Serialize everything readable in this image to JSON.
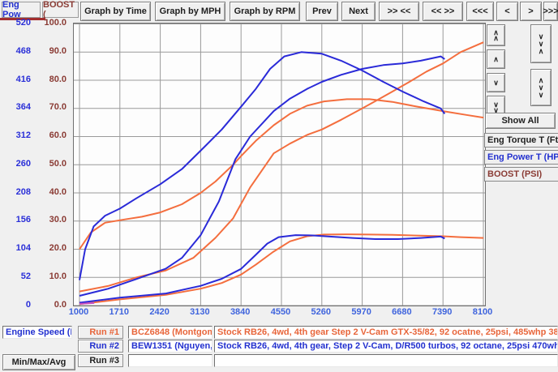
{
  "toolbar": {
    "axis_tabs": [
      {
        "label": "Eng Pow",
        "color": "#2230cf"
      },
      {
        "label": "BOOST (",
        "color": "#8a3b34"
      }
    ],
    "buttons": {
      "graph_by_time": "Graph by Time",
      "graph_by_mph": "Graph by MPH",
      "graph_by_rpm": "Graph by RPM",
      "prev": "Prev",
      "next": "Next",
      "zoom_in_x": ">> <<",
      "zoom_out_x": "<< >>",
      "pan_far_left": "<<<",
      "pan_left": "<",
      "pan_right": ">",
      "pan_far_right": ">>>"
    }
  },
  "right_panel": {
    "scroll_icons": {
      "up_fast": "∧\n∧",
      "up": "∧",
      "down": "∨",
      "down_fast": "∨\n∨",
      "collapse_scale": "∨\n∨\n∧",
      "expand_scale": "∧\n∨\n∨"
    },
    "show_all_label": "Show All",
    "legend": [
      {
        "label": "Eng Torque T (Ft",
        "color": "#202020"
      },
      {
        "label": "Eng Power T (HP",
        "color": "#2230cf"
      },
      {
        "label": "BOOST (PSI)",
        "color": "#8a3b34"
      }
    ]
  },
  "bottom": {
    "x_channel_label": "Engine Speed (R",
    "min_max_avg_label": "Min/Max/Avg",
    "runs": [
      {
        "label": "Run #1",
        "color": "#e8653a",
        "file": "BCZ6848 (Montgomer",
        "comment": "Stock RB26, 4wd, 4th gear Step 2 V-Cam GTX-35/82, 92 ocatne, 25psi, 485whp 380TQ"
      },
      {
        "label": "Run #2",
        "color": "#2230cf",
        "file": "BEW1351 (Nguyen, S",
        "comment": "Stock RB26, 4wd, 4th gear, Step 2 V-Cam, D/R500 turbos, 92 octane, 25psi 470whp, 440trq"
      },
      {
        "label": "Run #3",
        "color": "#202020",
        "file": "",
        "comment": ""
      }
    ]
  },
  "chart_data": {
    "type": "line",
    "grid": true,
    "x_axis": {
      "label": "Engine Speed (RPM)",
      "min": 1000,
      "max": 8100,
      "ticks": [
        1000,
        1710,
        2420,
        3130,
        3840,
        4550,
        5260,
        5970,
        6680,
        7390,
        8100
      ]
    },
    "y_axis_power": {
      "label": "Eng Power (HP) / Eng Torque (Ft-lb)",
      "min": 0,
      "max": 520,
      "color": "#2a2fd8",
      "ticks": [
        520,
        468,
        416,
        364,
        312,
        260,
        208,
        156,
        104,
        52,
        0
      ]
    },
    "y_axis_boost": {
      "label": "BOOST (PSI)",
      "min": 0.0,
      "max": 100.0,
      "color": "#8a3b34",
      "ticks": [
        "100.0",
        "90.0",
        "80.0",
        "70.0",
        "60.0",
        "50.0",
        "40.0",
        "30.0",
        "20.0",
        "10.0",
        "0.0"
      ]
    },
    "series": [
      {
        "name": "run1-torque",
        "unit": "ft-lb",
        "axis_max": 520,
        "color": "#f46e3e",
        "points": [
          [
            1000,
            104
          ],
          [
            1200,
            135
          ],
          [
            1450,
            153
          ],
          [
            1800,
            159
          ],
          [
            2100,
            164
          ],
          [
            2420,
            172
          ],
          [
            2800,
            187
          ],
          [
            3130,
            208
          ],
          [
            3390,
            229
          ],
          [
            3700,
            260
          ],
          [
            3840,
            276
          ],
          [
            4100,
            304
          ],
          [
            4415,
            333
          ],
          [
            4700,
            354
          ],
          [
            5000,
            369
          ],
          [
            5300,
            377
          ],
          [
            5700,
            381
          ],
          [
            6100,
            381
          ],
          [
            6500,
            376
          ],
          [
            6900,
            368
          ],
          [
            7390,
            359
          ],
          [
            7800,
            352
          ],
          [
            8100,
            347
          ]
        ]
      },
      {
        "name": "run1-power",
        "unit": "HP",
        "axis_max": 520,
        "color": "#f46e3e",
        "points": [
          [
            1000,
            26
          ],
          [
            1500,
            36
          ],
          [
            2000,
            52
          ],
          [
            2520,
            65
          ],
          [
            3000,
            88
          ],
          [
            3390,
            125
          ],
          [
            3700,
            161
          ],
          [
            4000,
            218
          ],
          [
            4415,
            281
          ],
          [
            4700,
            299
          ],
          [
            5000,
            315
          ],
          [
            5260,
            325
          ],
          [
            5600,
            343
          ],
          [
            5970,
            364
          ],
          [
            6244,
            380
          ],
          [
            6500,
            395
          ],
          [
            6800,
            413
          ],
          [
            7100,
            432
          ],
          [
            7390,
            447
          ],
          [
            7700,
            468
          ],
          [
            8100,
            486
          ]
        ]
      },
      {
        "name": "run1-boost",
        "unit": "PSI",
        "axis_max": 100,
        "color": "#f46e3e",
        "points": [
          [
            1000,
            0.5
          ],
          [
            1710,
            2.2
          ],
          [
            2520,
            3.8
          ],
          [
            3130,
            6
          ],
          [
            3500,
            8
          ],
          [
            3840,
            11
          ],
          [
            4100,
            14.5
          ],
          [
            4400,
            19
          ],
          [
            4700,
            22.8
          ],
          [
            5000,
            24.6
          ],
          [
            5300,
            25.2
          ],
          [
            5700,
            25.3
          ],
          [
            6100,
            25.2
          ],
          [
            6500,
            25.1
          ],
          [
            7000,
            24.8
          ],
          [
            7390,
            24.6
          ],
          [
            7700,
            24.3
          ],
          [
            8100,
            24
          ]
        ]
      },
      {
        "name": "run2-torque",
        "unit": "ft-lb",
        "axis_max": 520,
        "color": "#2a2ad8",
        "points": [
          [
            1000,
            47
          ],
          [
            1100,
            104
          ],
          [
            1250,
            146
          ],
          [
            1450,
            166
          ],
          [
            1710,
            179
          ],
          [
            2000,
            198
          ],
          [
            2420,
            224
          ],
          [
            2800,
            252
          ],
          [
            3130,
            286
          ],
          [
            3500,
            325
          ],
          [
            3840,
            367
          ],
          [
            4100,
            400
          ],
          [
            4350,
            437
          ],
          [
            4600,
            460
          ],
          [
            4900,
            468
          ],
          [
            5260,
            465
          ],
          [
            5600,
            452
          ],
          [
            5970,
            434
          ],
          [
            6340,
            413
          ],
          [
            6680,
            395
          ],
          [
            7050,
            377
          ],
          [
            7350,
            364
          ],
          [
            7420,
            354
          ]
        ]
      },
      {
        "name": "run2-power",
        "unit": "HP",
        "axis_max": 520,
        "color": "#2a2ad8",
        "points": [
          [
            1000,
            18
          ],
          [
            1500,
            31
          ],
          [
            2000,
            49
          ],
          [
            2515,
            68
          ],
          [
            2800,
            88
          ],
          [
            3130,
            130
          ],
          [
            3450,
            192
          ],
          [
            3740,
            270
          ],
          [
            4000,
            312
          ],
          [
            4415,
            359
          ],
          [
            4700,
            382
          ],
          [
            5000,
            400
          ],
          [
            5260,
            413
          ],
          [
            5600,
            426
          ],
          [
            5970,
            437
          ],
          [
            6340,
            444
          ],
          [
            6680,
            447
          ],
          [
            7000,
            452
          ],
          [
            7350,
            460
          ],
          [
            7420,
            455
          ]
        ]
      },
      {
        "name": "run2-boost",
        "unit": "PSI",
        "axis_max": 100,
        "color": "#2a2ad8",
        "points": [
          [
            1000,
            1
          ],
          [
            1710,
            2.8
          ],
          [
            2520,
            4.3
          ],
          [
            3130,
            7
          ],
          [
            3500,
            9.5
          ],
          [
            3840,
            13
          ],
          [
            4100,
            18
          ],
          [
            4300,
            22
          ],
          [
            4500,
            24.3
          ],
          [
            4800,
            25
          ],
          [
            5100,
            24.9
          ],
          [
            5400,
            24.5
          ],
          [
            5800,
            24
          ],
          [
            6200,
            23.6
          ],
          [
            6600,
            23.6
          ],
          [
            7000,
            24
          ],
          [
            7350,
            24.5
          ],
          [
            7420,
            23.8
          ]
        ]
      },
      {
        "name": "overlap-marker",
        "unit": "PSI",
        "axis_max": 100,
        "color": "#c750c0",
        "points": [
          [
            1000,
            0.6
          ],
          [
            1260,
            0.9
          ]
        ]
      }
    ],
    "legend_position": "right"
  }
}
